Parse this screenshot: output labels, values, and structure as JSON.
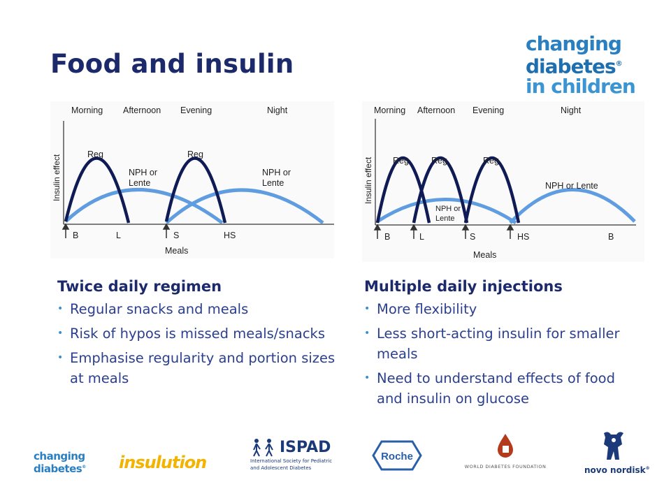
{
  "title": "Food and insulin",
  "brand_logo": {
    "line1": "changing",
    "line2": "diabetes",
    "line3": "in children",
    "mark": "®",
    "colors": [
      "#2a7fc0",
      "#1e6fb0",
      "#3a95d2"
    ]
  },
  "left_diagram": {
    "periods": [
      "Morning",
      "Afternoon",
      "Evening",
      "Night"
    ],
    "y_axis_label": "Insulin effect",
    "x_axis_label": "Meals",
    "meal_labels": [
      "B",
      "L",
      "S",
      "HS"
    ],
    "curve_labels": {
      "reg1": "Reg",
      "reg2": "Reg",
      "nph1_line1": "NPH or",
      "nph1_line2": "Lente",
      "nph2_line1": "NPH or",
      "nph2_line2": "Lente"
    }
  },
  "right_diagram": {
    "periods": [
      "Morning",
      "Afternoon",
      "Evening",
      "Night"
    ],
    "y_axis_label": "Insulin effect",
    "x_axis_label": "Meals",
    "meal_labels": [
      "B",
      "L",
      "S",
      "HS",
      "B"
    ],
    "curve_labels": {
      "reg1": "Reg",
      "reg2": "Reg",
      "reg3": "Reg",
      "nph_small_line1": "NPH or",
      "nph_small_line2": "Lente",
      "nph_large": "NPH or Lente"
    }
  },
  "colors": {
    "regular_curve": "#101a55",
    "nph_curve": "#5f9de0",
    "title": "#1c2a6b",
    "bullet_text": "#2b3f8f"
  },
  "left_column": {
    "heading": "Twice daily regimen",
    "bullets": [
      "Regular snacks and meals",
      "Risk of hypos is missed meals/snacks",
      "Emphasise regularity and portion sizes at meals"
    ]
  },
  "right_column": {
    "heading": "Multiple daily injections",
    "bullets": [
      "More flexibility",
      "Less short-acting insulin for smaller meals",
      "Need to understand effects of food and insulin on glucose"
    ]
  },
  "footer_logos": {
    "changing_diabetes": {
      "line1": "changing",
      "line2": "diabetes",
      "mark": "®"
    },
    "insulution": {
      "text": "insulution"
    },
    "ispad": {
      "name": "ISPAD",
      "subtitle_line1": "International Society for Pediatric",
      "subtitle_line2": "and Adolescent Diabetes"
    },
    "roche": {
      "text": "Roche"
    },
    "wdf": {
      "text": "WORLD DIABETES FOUNDATION"
    },
    "novo_nordisk": {
      "text": "novo nordisk",
      "mark": "®"
    }
  }
}
